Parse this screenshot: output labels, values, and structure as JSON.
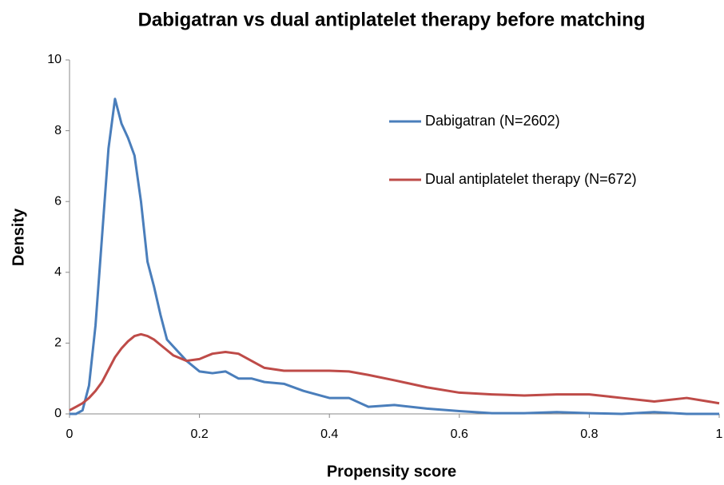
{
  "chart_data": {
    "type": "line",
    "title": "Dabigatran vs dual antiplatelet therapy before matching",
    "x_label": "Propensity score",
    "y_label": "Density",
    "x": [
      0,
      0.01,
      0.02,
      0.03,
      0.04,
      0.05,
      0.06,
      0.07,
      0.08,
      0.09,
      0.1,
      0.11,
      0.12,
      0.13,
      0.14,
      0.15,
      0.16,
      0.18,
      0.2,
      0.22,
      0.24,
      0.26,
      0.28,
      0.3,
      0.33,
      0.36,
      0.4,
      0.43,
      0.46,
      0.5,
      0.55,
      0.6,
      0.65,
      0.7,
      0.75,
      0.8,
      0.85,
      0.9,
      0.95,
      1
    ],
    "series": [
      {
        "name": "Dabigatran (N=2602)",
        "color": "#4a7ebb",
        "values": [
          0,
          0,
          0.1,
          0.8,
          2.5,
          5,
          7.5,
          8.9,
          8.2,
          7.8,
          7.3,
          6,
          4.3,
          3.6,
          2.8,
          2.1,
          1.9,
          1.5,
          1.2,
          1.15,
          1.2,
          1.0,
          1.0,
          0.9,
          0.85,
          0.65,
          0.45,
          0.45,
          0.2,
          0.25,
          0.15,
          0.08,
          0.02,
          0.02,
          0.05,
          0.02,
          0,
          0.05,
          0,
          0
        ]
      },
      {
        "name": "Dual antiplatelet therapy (N=672)",
        "color": "#be4b48",
        "values": [
          0.1,
          0.2,
          0.3,
          0.45,
          0.65,
          0.9,
          1.25,
          1.6,
          1.85,
          2.05,
          2.2,
          2.25,
          2.2,
          2.1,
          1.95,
          1.8,
          1.65,
          1.5,
          1.55,
          1.7,
          1.75,
          1.7,
          1.5,
          1.3,
          1.22,
          1.22,
          1.22,
          1.2,
          1.1,
          0.95,
          0.75,
          0.6,
          0.55,
          0.52,
          0.55,
          0.55,
          0.45,
          0.35,
          0.45,
          0.3
        ]
      }
    ],
    "xlim": [
      0,
      1
    ],
    "xticks": [
      0,
      0.2,
      0.4,
      0.6,
      0.8,
      1
    ],
    "ylim": [
      0,
      10
    ],
    "yticks": [
      0,
      2,
      4,
      6,
      8,
      10
    ],
    "grid": false
  }
}
